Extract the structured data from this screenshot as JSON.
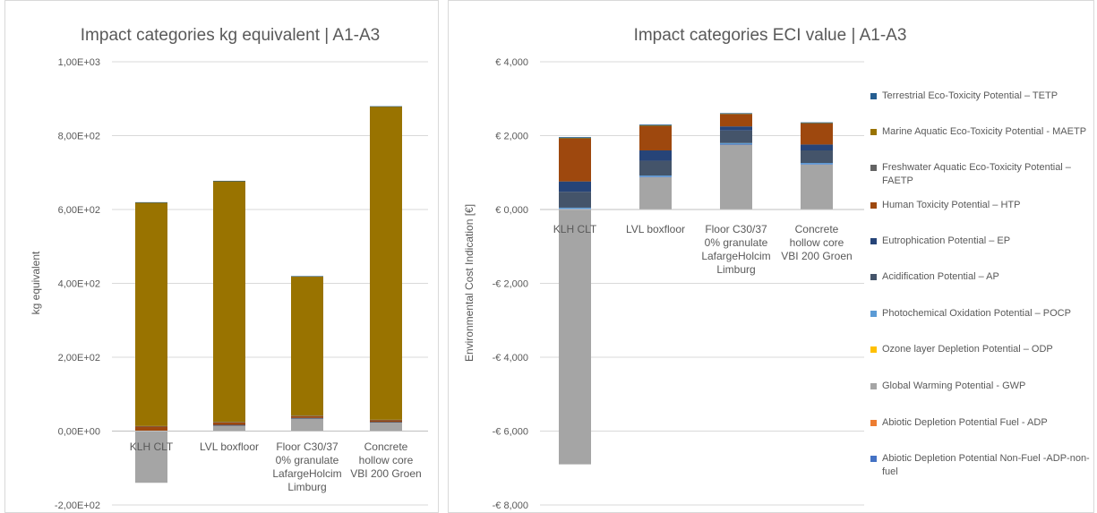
{
  "chart_data": [
    {
      "type": "bar",
      "stacked": true,
      "title": "Impact categories kg equivalent | A1-A3",
      "ylabel": "kg equivalent",
      "ylim": [
        -200,
        1000
      ],
      "yticks": [
        -200,
        0,
        200,
        400,
        600,
        800,
        1000
      ],
      "ytick_labels": [
        "-2,00E+02",
        "0,00E+00",
        "2,00E+02",
        "4,00E+02",
        "6,00E+02",
        "8,00E+02",
        "1,00E+03"
      ],
      "grid": true,
      "categories": [
        "KLH CLT",
        "LVL boxfloor",
        "Floor C30/37 0% granulate LafargeHolcim Limburg",
        "Concrete hollow core VBI 200 Groen"
      ],
      "category_lines": [
        [
          "KLH CLT"
        ],
        [
          "LVL boxfloor"
        ],
        [
          "Floor C30/37",
          "0% granulate",
          "LafargeHolcim",
          "Limburg"
        ],
        [
          "Concrete",
          "hollow core",
          "VBI 200 Groen"
        ]
      ],
      "series": [
        {
          "name": "Global Warming Potential - GWP",
          "color": "#a5a5a5",
          "values": [
            -140,
            16,
            35,
            24
          ]
        },
        {
          "name": "Acidification Potential  – AP",
          "color": "#44546a",
          "values": [
            0.5,
            0.5,
            0.5,
            0.5
          ]
        },
        {
          "name": "Eutrophication Potential  – EP",
          "color": "#264478",
          "values": [
            0.2,
            0.2,
            0.2,
            0.2
          ]
        },
        {
          "name": "Human Toxicity Potential  – HTP",
          "color": "#9e480e",
          "values": [
            12,
            7,
            5,
            5
          ]
        },
        {
          "name": "Freshwater Aquatic Eco-Toxicity Potential – FAETP",
          "color": "#636363",
          "values": [
            1,
            1,
            1,
            1
          ]
        },
        {
          "name": "Marine Aquatic Eco-Toxicity Potential  - MAETP",
          "color": "#997300",
          "values": [
            605,
            652,
            377,
            848
          ]
        },
        {
          "name": "Terrestrial Eco-Toxicity Potential  – TETP",
          "color": "#255e91",
          "values": [
            1,
            1,
            1,
            1
          ]
        }
      ]
    },
    {
      "type": "bar",
      "stacked": true,
      "title": "Impact categories ECI value | A1-A3",
      "ylabel": "Environmental Cost Indication [€]",
      "ylim": [
        -8000,
        4000
      ],
      "yticks": [
        -8000,
        -6000,
        -4000,
        -2000,
        0,
        2000,
        4000
      ],
      "ytick_labels": [
        "-€ 8,000",
        "-€ 6,000",
        "-€ 4,000",
        "-€ 2,000",
        "€ 0,000",
        "€ 2,000",
        "€ 4,000"
      ],
      "grid": true,
      "categories": [
        "KLH CLT",
        "LVL boxfloor",
        "Floor C30/37 0% granulate LafargeHolcim Limburg",
        "Concrete hollow core VBI 200 Groen"
      ],
      "category_lines": [
        [
          "KLH CLT"
        ],
        [
          "LVL boxfloor"
        ],
        [
          "Floor C30/37",
          "0% granulate",
          "LafargeHolcim",
          "Limburg"
        ],
        [
          "Concrete",
          "hollow core",
          "VBI 200 Groen"
        ]
      ],
      "series": [
        {
          "name": "Global Warming Potential - GWP",
          "color": "#a5a5a5",
          "values": [
            -6900,
            880,
            1760,
            1220
          ]
        },
        {
          "name": "Abiotic Depletion Potential Non-Fuel -ADP-non-fuel",
          "color": "#4472c4",
          "values": [
            20,
            10,
            10,
            10
          ]
        },
        {
          "name": "Photochemical Oxidation Potential  – POCP",
          "color": "#5b9bd5",
          "values": [
            30,
            30,
            30,
            30
          ]
        },
        {
          "name": "Acidification Potential  – AP",
          "color": "#44546a",
          "values": [
            430,
            400,
            340,
            340
          ]
        },
        {
          "name": "Eutrophication Potential  – EP",
          "color": "#264478",
          "values": [
            280,
            280,
            110,
            160
          ]
        },
        {
          "name": "Human Toxicity Potential  – HTP",
          "color": "#9e480e",
          "values": [
            1160,
            660,
            330,
            570
          ]
        },
        {
          "name": "Freshwater Aquatic Eco-Toxicity Potential – FAETP",
          "color": "#636363",
          "values": [
            10,
            10,
            10,
            10
          ]
        },
        {
          "name": "Marine Aquatic Eco-Toxicity Potential  - MAETP",
          "color": "#997300",
          "values": [
            10,
            10,
            10,
            10
          ]
        },
        {
          "name": "Terrestrial Eco-Toxicity Potential  – TETP",
          "color": "#255e91",
          "values": [
            20,
            20,
            10,
            10
          ]
        }
      ]
    }
  ],
  "legend": [
    {
      "label": "Terrestrial Eco-Toxicity Potential  – TETP",
      "color": "#255e91"
    },
    {
      "label": "Marine Aquatic Eco-Toxicity Potential  - MAETP",
      "color": "#997300"
    },
    {
      "label": "Freshwater Aquatic Eco-Toxicity Potential – FAETP",
      "color": "#636363"
    },
    {
      "label": "Human Toxicity Potential  – HTP",
      "color": "#9e480e"
    },
    {
      "label": "Eutrophication Potential  – EP",
      "color": "#264478"
    },
    {
      "label": "Acidification Potential  – AP",
      "color": "#44546a"
    },
    {
      "label": "Photochemical Oxidation Potential  – POCP",
      "color": "#5b9bd5"
    },
    {
      "label": "Ozone layer Depletion Potential  – ODP",
      "color": "#ffc000"
    },
    {
      "label": "Global Warming Potential - GWP",
      "color": "#a5a5a5"
    },
    {
      "label": "Abiotic Depletion Potential Fuel - ADP",
      "color": "#ed7d31"
    },
    {
      "label": "Abiotic Depletion Potential Non-Fuel -ADP-non-fuel",
      "color": "#4472c4"
    }
  ]
}
